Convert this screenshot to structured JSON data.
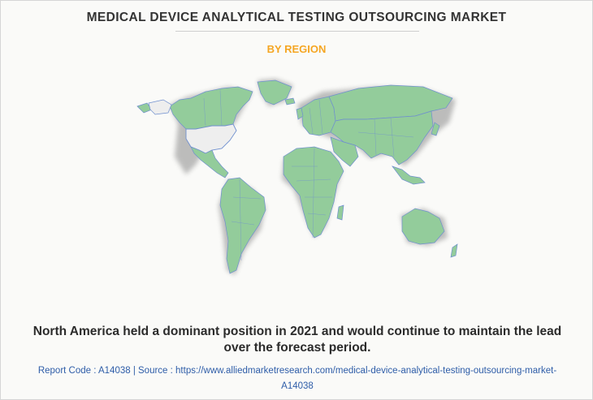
{
  "title": "MEDICAL DEVICE ANALYTICAL TESTING OUTSOURCING MARKET",
  "subtitle": "BY REGION",
  "headline_line1": "North America held a dominant position in 2021 and would continue to maintain the lead",
  "headline_line2": "over the forecast period.",
  "footer_line1": "Report Code : A14038  |  Source : https://www.alliedmarketresearch.com/medical-device-analytical-testing-outsourcing-market-",
  "footer_line2": "A14038",
  "map": {
    "highlighted_region": "North America",
    "colors": {
      "land": "#93cc9b",
      "highlight": "#eeeeee",
      "border": "#6f8fcf",
      "shadow": "#7a7a7a"
    }
  }
}
